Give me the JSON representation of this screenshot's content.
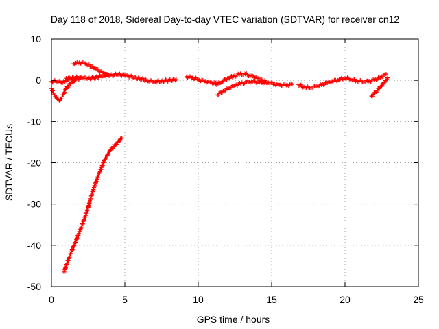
{
  "chart_data": {
    "type": "scatter",
    "title": "Day 118 of 2018, Sidereal Day-to-day VTEC variation (SDTVAR) for receiver cn12",
    "xlabel": "GPS time / hours",
    "ylabel": "SDTVAR / TECUs",
    "xlim": [
      0,
      25
    ],
    "ylim": [
      -50,
      10
    ],
    "xticks": [
      0,
      5,
      10,
      15,
      20,
      25
    ],
    "yticks": [
      10,
      0,
      -10,
      -20,
      -30,
      -40,
      -50
    ],
    "grid": true,
    "point_marker": "+",
    "series": [
      {
        "name": "falling-arc",
        "color": "#ff0000",
        "x": [
          0.85,
          1.2,
          1.6,
          2.0,
          2.4,
          2.8,
          3.2,
          3.6,
          4.0,
          4.4,
          4.8
        ],
        "y": [
          -46.5,
          -43.0,
          -39.5,
          -36.0,
          -32.0,
          -27.0,
          -23.0,
          -19.5,
          -17.0,
          -15.5,
          -14.0
        ]
      },
      {
        "name": "early-cluster-lower",
        "color": "#ff0000",
        "x": [
          0.0,
          0.2,
          0.4,
          0.6,
          0.8,
          1.0,
          1.3,
          1.6,
          2.0
        ],
        "y": [
          -2.0,
          -3.5,
          -4.5,
          -4.8,
          -3.5,
          -2.0,
          -0.8,
          0.0,
          0.6
        ]
      },
      {
        "name": "early-cluster-upper",
        "color": "#ff0000",
        "x": [
          0.0,
          0.3,
          0.6,
          0.9,
          1.2,
          1.5
        ],
        "y": [
          -0.3,
          -0.2,
          -0.5,
          -0.3,
          0.2,
          0.5
        ]
      },
      {
        "name": "hump-track",
        "color": "#ff0000",
        "x": [
          1.5,
          1.9,
          2.3,
          2.7,
          3.1,
          3.5,
          3.9
        ],
        "y": [
          4.0,
          4.3,
          4.1,
          3.4,
          2.6,
          1.8,
          1.2
        ]
      },
      {
        "name": "main-track-1",
        "color": "#ff0000",
        "x": [
          1.0,
          1.5,
          2.0,
          2.5,
          3.0,
          3.5,
          4.0,
          4.5,
          5.0,
          5.5,
          6.0,
          6.5,
          7.0,
          7.5,
          8.0,
          8.5
        ],
        "y": [
          0.5,
          0.6,
          0.8,
          0.5,
          0.7,
          1.0,
          1.2,
          1.4,
          1.2,
          0.8,
          0.4,
          0.0,
          -0.3,
          -0.2,
          0.0,
          0.2
        ]
      },
      {
        "name": "main-track-2",
        "color": "#ff0000",
        "x": [
          9.2,
          9.6,
          10.0,
          10.4,
          10.8,
          11.2
        ],
        "y": [
          0.9,
          0.6,
          0.2,
          -0.2,
          -0.5,
          -0.6
        ]
      },
      {
        "name": "main-track-3",
        "color": "#ff0000",
        "x": [
          11.2,
          11.6,
          12.0,
          12.4,
          12.8,
          13.2,
          13.6,
          14.0,
          14.4,
          14.8,
          15.2,
          15.6,
          16.0,
          16.4
        ],
        "y": [
          -1.0,
          -0.3,
          0.5,
          1.0,
          1.4,
          1.5,
          1.1,
          0.5,
          -0.1,
          -0.6,
          -0.9,
          -1.1,
          -1.2,
          -1.0
        ]
      },
      {
        "name": "main-track-4",
        "color": "#ff0000",
        "x": [
          11.3,
          11.7,
          12.1,
          12.5,
          12.9,
          13.3,
          13.7,
          14.1,
          14.5
        ],
        "y": [
          -3.5,
          -2.6,
          -1.8,
          -1.2,
          -0.8,
          -0.4,
          -0.3,
          -0.4,
          -0.6
        ]
      },
      {
        "name": "main-track-5",
        "color": "#ff0000",
        "x": [
          16.8,
          17.2,
          17.6,
          18.0,
          18.4,
          18.8,
          19.2,
          19.6,
          20.0,
          20.4,
          20.8,
          21.2,
          21.6,
          22.0,
          22.4,
          22.8
        ],
        "y": [
          -1.0,
          -1.6,
          -1.8,
          -1.5,
          -1.1,
          -0.6,
          -0.2,
          0.2,
          0.5,
          0.3,
          -0.1,
          -0.3,
          -0.2,
          0.1,
          0.6,
          1.5
        ]
      },
      {
        "name": "late-tail",
        "color": "#ff0000",
        "x": [
          21.8,
          22.1,
          22.4,
          22.7,
          22.9
        ],
        "y": [
          -3.8,
          -2.8,
          -1.6,
          -0.4,
          0.6
        ]
      }
    ]
  }
}
